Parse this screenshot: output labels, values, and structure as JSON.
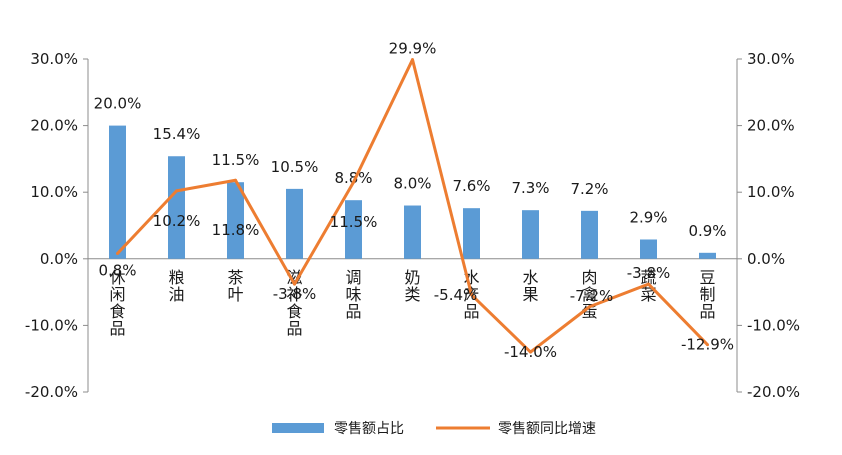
{
  "chart_data": {
    "type": "bar",
    "categories": [
      "休闲食品",
      "粮油",
      "茶叶",
      "滋补食品",
      "调味品",
      "奶类",
      "水产品",
      "水果",
      "肉禽蛋",
      "蔬菜",
      "豆制品"
    ],
    "series": [
      {
        "name": "零售额占比",
        "type": "bar",
        "axis": "left",
        "values": [
          20.0,
          15.4,
          11.5,
          10.5,
          8.8,
          8.0,
          7.6,
          7.3,
          7.2,
          2.9,
          0.9
        ],
        "labels": [
          "20.0%",
          "15.4%",
          "11.5%",
          "10.5%",
          "8.8%",
          "8.0%",
          "7.6%",
          "7.3%",
          "7.2%",
          "2.9%",
          "0.9%"
        ],
        "color": "#5b9bd5"
      },
      {
        "name": "零售额同比增速",
        "type": "line",
        "axis": "right",
        "values": [
          0.8,
          10.2,
          11.8,
          -3.8,
          11.5,
          29.9,
          -5.4,
          -14.0,
          -7.2,
          -3.8,
          -12.9
        ],
        "labels": [
          "0.8%",
          "10.2%",
          "11.8%",
          "-3.8%",
          "11.5%",
          "29.9%",
          "-5.4%",
          "-14.0%",
          "-7.2%",
          "-3.8%",
          "-12.9%"
        ],
        "color": "#ed7d31"
      }
    ],
    "left_axis": {
      "range": [
        -20,
        30
      ],
      "ticks": [
        "-20.0%",
        "-10.0%",
        "0.0%",
        "10.0%",
        "20.0%",
        "30.0%"
      ]
    },
    "right_axis": {
      "range": [
        -20,
        30
      ],
      "ticks": [
        "-20.0%",
        "-10.0%",
        "0.0%",
        "10.0%",
        "20.0%",
        "30.0%"
      ]
    },
    "grid": false,
    "legend_position": "bottom",
    "title": "",
    "xlabel": "",
    "ylabel": ""
  }
}
